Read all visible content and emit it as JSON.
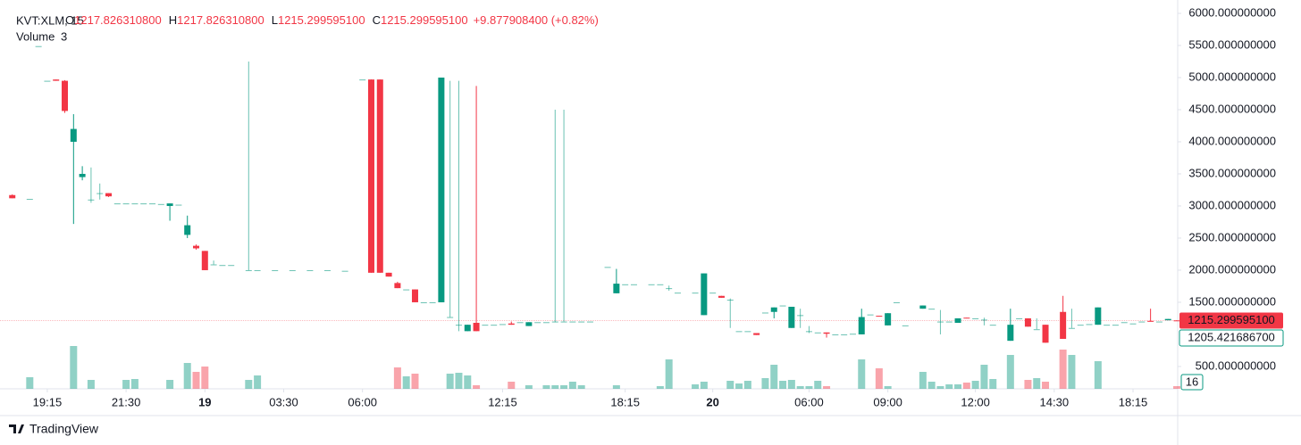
{
  "chart_data": {
    "type": "candlestick",
    "symbol": "KVT:XLM, 15",
    "ohlc_legend": {
      "o_label": "O",
      "o": "1217.826310800",
      "h_label": "H",
      "h": "1217.826310800",
      "l_label": "L",
      "l": "1215.299595100",
      "c_label": "C",
      "c": "1215.299595100",
      "change": "+9.877908400 (+0.82%)"
    },
    "volume_label": "Volume",
    "volume_value": "3",
    "up_color": "#089981",
    "down_color": "#f23645",
    "ylim": [
      152,
      6139
    ],
    "yticks": [
      {
        "value": 500,
        "label": "500.000000000"
      },
      {
        "value": 1500,
        "label": "1500.000000000"
      },
      {
        "value": 2000,
        "label": "2000.000000000"
      },
      {
        "value": 2500,
        "label": "2500.000000000"
      },
      {
        "value": 3000,
        "label": "3000.000000000"
      },
      {
        "value": 3500,
        "label": "3500.000000000"
      },
      {
        "value": 4000,
        "label": "4000.000000000"
      },
      {
        "value": 4500,
        "label": "4500.000000000"
      },
      {
        "value": 5000,
        "label": "5000.000000000"
      },
      {
        "value": 5500,
        "label": "5500.000000000"
      },
      {
        "value": 6000,
        "label": "6000.000000000"
      }
    ],
    "xlim": [
      -1.4,
      133.1
    ],
    "xticks": [
      {
        "value": 4,
        "label": "19:15"
      },
      {
        "value": 13,
        "label": "21:30"
      },
      {
        "value": 22,
        "label": "19"
      },
      {
        "value": 31,
        "label": "03:30"
      },
      {
        "value": 40,
        "label": "06:00"
      },
      {
        "value": 56,
        "label": "12:15"
      },
      {
        "value": 70,
        "label": "18:15"
      },
      {
        "value": 80,
        "label": "20"
      },
      {
        "value": 91,
        "label": "06:00"
      },
      {
        "value": 100,
        "label": "09:00"
      },
      {
        "value": 110,
        "label": "12:00"
      },
      {
        "value": 119,
        "label": "14:30"
      },
      {
        "value": 128,
        "label": "18:15"
      }
    ],
    "bold_xticks": [
      "19",
      "20"
    ],
    "volume_lim": [
      0,
      60
    ],
    "last_price": 1215.2995951,
    "last_price_label": "1215.299595100",
    "second_price_label": "1205.421686700",
    "volume_axis_label": "16",
    "brand": "TradingView",
    "candles": [
      {
        "x": 0,
        "o": 3170,
        "h": 3180,
        "l": 3120,
        "c": 3120,
        "v": 0
      },
      {
        "x": 2,
        "o": 3110,
        "h": 3110,
        "l": 3110,
        "c": 3110,
        "v": 13
      },
      {
        "x": 3,
        "o": 5490,
        "h": 5490,
        "l": 5490,
        "c": 5490,
        "v": 0
      },
      {
        "x": 4,
        "o": 4950,
        "h": 4950,
        "l": 4950,
        "c": 4950,
        "v": 0
      },
      {
        "x": 5,
        "o": 4970,
        "h": 4970,
        "l": 4950,
        "c": 4950,
        "v": 0
      },
      {
        "x": 6,
        "o": 4950,
        "h": 4960,
        "l": 4450,
        "c": 4480,
        "v": 0
      },
      {
        "x": 7,
        "o": 4000,
        "h": 4430,
        "l": 2720,
        "c": 4200,
        "v": 48
      },
      {
        "x": 8,
        "o": 3450,
        "h": 3620,
        "l": 3400,
        "c": 3500,
        "v": 0
      },
      {
        "x": 9,
        "o": 3100,
        "h": 3600,
        "l": 3050,
        "c": 3100,
        "v": 10
      },
      {
        "x": 10,
        "o": 3200,
        "h": 3350,
        "l": 3100,
        "c": 3200,
        "v": 0
      },
      {
        "x": 11,
        "o": 3200,
        "h": 3200,
        "l": 3140,
        "c": 3150,
        "v": 0
      },
      {
        "x": 12,
        "o": 3040,
        "h": 3040,
        "l": 3040,
        "c": 3040,
        "v": 0
      },
      {
        "x": 13,
        "o": 3040,
        "h": 3040,
        "l": 3040,
        "c": 3040,
        "v": 10
      },
      {
        "x": 14,
        "o": 3040,
        "h": 3040,
        "l": 3040,
        "c": 3040,
        "v": 11
      },
      {
        "x": 15,
        "o": 3040,
        "h": 3040,
        "l": 3040,
        "c": 3040,
        "v": 0
      },
      {
        "x": 16,
        "o": 3040,
        "h": 3040,
        "l": 3040,
        "c": 3040,
        "v": 0
      },
      {
        "x": 17,
        "o": 3030,
        "h": 3030,
        "l": 3030,
        "c": 3030,
        "v": 0
      },
      {
        "x": 18,
        "o": 3000,
        "h": 3040,
        "l": 2770,
        "c": 3040,
        "v": 10
      },
      {
        "x": 19,
        "o": 3020,
        "h": 3020,
        "l": 3020,
        "c": 3020,
        "v": 0
      },
      {
        "x": 20,
        "o": 2550,
        "h": 2850,
        "l": 2500,
        "c": 2700,
        "v": 29
      },
      {
        "x": 21,
        "o": 2380,
        "h": 2400,
        "l": 2320,
        "c": 2340,
        "v": 19
      },
      {
        "x": 22,
        "o": 2300,
        "h": 2300,
        "l": 2000,
        "c": 2000,
        "v": 25
      },
      {
        "x": 23,
        "o": 2090,
        "h": 2150,
        "l": 2090,
        "c": 2090,
        "v": 0
      },
      {
        "x": 24,
        "o": 2080,
        "h": 2080,
        "l": 2080,
        "c": 2080,
        "v": 0
      },
      {
        "x": 25,
        "o": 2080,
        "h": 2080,
        "l": 2080,
        "c": 2080,
        "v": 0
      },
      {
        "x": 27,
        "o": 2000,
        "h": 5250,
        "l": 2000,
        "c": 2000,
        "v": 10
      },
      {
        "x": 28,
        "o": 2000,
        "h": 2000,
        "l": 2000,
        "c": 2000,
        "v": 15
      },
      {
        "x": 30,
        "o": 2000,
        "h": 2000,
        "l": 2000,
        "c": 2000,
        "v": 0
      },
      {
        "x": 32,
        "o": 2000,
        "h": 2000,
        "l": 2000,
        "c": 2000,
        "v": 0
      },
      {
        "x": 34,
        "o": 2000,
        "h": 2000,
        "l": 2000,
        "c": 2000,
        "v": 0
      },
      {
        "x": 36,
        "o": 2000,
        "h": 2000,
        "l": 2000,
        "c": 2000,
        "v": 0
      },
      {
        "x": 38,
        "o": 1990,
        "h": 1990,
        "l": 1990,
        "c": 1990,
        "v": 0
      },
      {
        "x": 40,
        "o": 4970,
        "h": 4970,
        "l": 4970,
        "c": 4970,
        "v": 0
      },
      {
        "x": 41,
        "o": 4970,
        "h": 4970,
        "l": 1960,
        "c": 1960,
        "v": 0
      },
      {
        "x": 42,
        "o": 4970,
        "h": 4970,
        "l": 1960,
        "c": 1960,
        "v": 0
      },
      {
        "x": 43,
        "o": 1960,
        "h": 1960,
        "l": 1900,
        "c": 1900,
        "v": 0
      },
      {
        "x": 44,
        "o": 1800,
        "h": 1820,
        "l": 1720,
        "c": 1720,
        "v": 24
      },
      {
        "x": 45,
        "o": 1700,
        "h": 1700,
        "l": 1700,
        "c": 1700,
        "v": 14
      },
      {
        "x": 46,
        "o": 1700,
        "h": 1700,
        "l": 1500,
        "c": 1500,
        "v": 17
      },
      {
        "x": 47,
        "o": 1500,
        "h": 1500,
        "l": 1500,
        "c": 1500,
        "v": 0
      },
      {
        "x": 48,
        "o": 1500,
        "h": 1500,
        "l": 1500,
        "c": 1500,
        "v": 0
      },
      {
        "x": 49,
        "o": 1500,
        "h": 5000,
        "l": 1500,
        "c": 5000,
        "v": 0
      },
      {
        "x": 50,
        "o": 1270,
        "h": 4950,
        "l": 1270,
        "c": 1270,
        "v": 17
      },
      {
        "x": 51,
        "o": 1150,
        "h": 4950,
        "l": 1050,
        "c": 1150,
        "v": 18
      },
      {
        "x": 52,
        "o": 1050,
        "h": 1150,
        "l": 1050,
        "c": 1150,
        "v": 15
      },
      {
        "x": 53,
        "o": 1180,
        "h": 4870,
        "l": 1050,
        "c": 1050,
        "v": 4
      },
      {
        "x": 54,
        "o": 1150,
        "h": 1150,
        "l": 1150,
        "c": 1150,
        "v": 0
      },
      {
        "x": 55,
        "o": 1150,
        "h": 1150,
        "l": 1150,
        "c": 1150,
        "v": 0
      },
      {
        "x": 56,
        "o": 1160,
        "h": 1160,
        "l": 1160,
        "c": 1160,
        "v": 0
      },
      {
        "x": 57,
        "o": 1170,
        "h": 1200,
        "l": 1150,
        "c": 1150,
        "v": 8
      },
      {
        "x": 58,
        "o": 1190,
        "h": 1190,
        "l": 1190,
        "c": 1190,
        "v": 0
      },
      {
        "x": 59,
        "o": 1130,
        "h": 1190,
        "l": 1130,
        "c": 1190,
        "v": 4
      },
      {
        "x": 60,
        "o": 1190,
        "h": 1190,
        "l": 1190,
        "c": 1190,
        "v": 0
      },
      {
        "x": 61,
        "o": 1190,
        "h": 1190,
        "l": 1190,
        "c": 1190,
        "v": 4
      },
      {
        "x": 62,
        "o": 1200,
        "h": 4500,
        "l": 1190,
        "c": 1200,
        "v": 4
      },
      {
        "x": 63,
        "o": 1200,
        "h": 4500,
        "l": 1200,
        "c": 1200,
        "v": 4
      },
      {
        "x": 64,
        "o": 1200,
        "h": 1200,
        "l": 1200,
        "c": 1200,
        "v": 8
      },
      {
        "x": 65,
        "o": 1200,
        "h": 1200,
        "l": 1200,
        "c": 1200,
        "v": 4
      },
      {
        "x": 66,
        "o": 1200,
        "h": 1200,
        "l": 1200,
        "c": 1200,
        "v": 0
      },
      {
        "x": 68,
        "o": 2050,
        "h": 2050,
        "l": 2050,
        "c": 2050,
        "v": 0
      },
      {
        "x": 69,
        "o": 1640,
        "h": 2020,
        "l": 1640,
        "c": 1790,
        "v": 4
      },
      {
        "x": 70,
        "o": 1780,
        "h": 1780,
        "l": 1780,
        "c": 1780,
        "v": 0
      },
      {
        "x": 71,
        "o": 1780,
        "h": 1780,
        "l": 1780,
        "c": 1780,
        "v": 0
      },
      {
        "x": 73,
        "o": 1780,
        "h": 1780,
        "l": 1780,
        "c": 1780,
        "v": 0
      },
      {
        "x": 74,
        "o": 1780,
        "h": 1780,
        "l": 1780,
        "c": 1780,
        "v": 3
      },
      {
        "x": 75,
        "o": 1720,
        "h": 1760,
        "l": 1680,
        "c": 1720,
        "v": 33
      },
      {
        "x": 76,
        "o": 1650,
        "h": 1650,
        "l": 1650,
        "c": 1650,
        "v": 0
      },
      {
        "x": 78,
        "o": 1650,
        "h": 1650,
        "l": 1650,
        "c": 1650,
        "v": 5
      },
      {
        "x": 79,
        "o": 1300,
        "h": 1950,
        "l": 1300,
        "c": 1950,
        "v": 8
      },
      {
        "x": 80,
        "o": 1650,
        "h": 1650,
        "l": 1650,
        "c": 1650,
        "v": 0
      },
      {
        "x": 81,
        "o": 1600,
        "h": 1600,
        "l": 1570,
        "c": 1570,
        "v": 0
      },
      {
        "x": 82,
        "o": 1540,
        "h": 1560,
        "l": 1100,
        "c": 1540,
        "v": 9
      },
      {
        "x": 83,
        "o": 1050,
        "h": 1050,
        "l": 1050,
        "c": 1050,
        "v": 6
      },
      {
        "x": 84,
        "o": 1050,
        "h": 1050,
        "l": 1050,
        "c": 1050,
        "v": 9
      },
      {
        "x": 85,
        "o": 1020,
        "h": 1020,
        "l": 990,
        "c": 990,
        "v": 0
      },
      {
        "x": 86,
        "o": 1340,
        "h": 1340,
        "l": 1340,
        "c": 1340,
        "v": 12
      },
      {
        "x": 87,
        "o": 1350,
        "h": 1420,
        "l": 1250,
        "c": 1420,
        "v": 27
      },
      {
        "x": 88,
        "o": 1450,
        "h": 1450,
        "l": 1450,
        "c": 1450,
        "v": 9
      },
      {
        "x": 89,
        "o": 1100,
        "h": 1430,
        "l": 1100,
        "c": 1430,
        "v": 10
      },
      {
        "x": 90,
        "o": 1300,
        "h": 1400,
        "l": 1100,
        "c": 1300,
        "v": 3
      },
      {
        "x": 91,
        "o": 1050,
        "h": 1130,
        "l": 1020,
        "c": 1050,
        "v": 3
      },
      {
        "x": 92,
        "o": 1030,
        "h": 1030,
        "l": 1030,
        "c": 1030,
        "v": 9
      },
      {
        "x": 93,
        "o": 1030,
        "h": 1030,
        "l": 950,
        "c": 1010,
        "v": 3
      },
      {
        "x": 94,
        "o": 1000,
        "h": 1000,
        "l": 1000,
        "c": 1000,
        "v": 0
      },
      {
        "x": 95,
        "o": 1000,
        "h": 1000,
        "l": 1000,
        "c": 1000,
        "v": 0
      },
      {
        "x": 96,
        "o": 1010,
        "h": 1010,
        "l": 1010,
        "c": 1010,
        "v": 0
      },
      {
        "x": 97,
        "o": 1000,
        "h": 1400,
        "l": 1000,
        "c": 1270,
        "v": 33
      },
      {
        "x": 98,
        "o": 1310,
        "h": 1310,
        "l": 1310,
        "c": 1310,
        "v": 0
      },
      {
        "x": 99,
        "o": 1290,
        "h": 1290,
        "l": 1280,
        "c": 1280,
        "v": 23
      },
      {
        "x": 100,
        "o": 1140,
        "h": 1330,
        "l": 1140,
        "c": 1330,
        "v": 3
      },
      {
        "x": 101,
        "o": 1500,
        "h": 1500,
        "l": 1500,
        "c": 1500,
        "v": 0
      },
      {
        "x": 102,
        "o": 1140,
        "h": 1140,
        "l": 1140,
        "c": 1140,
        "v": 0
      },
      {
        "x": 104,
        "o": 1400,
        "h": 1450,
        "l": 1400,
        "c": 1450,
        "v": 19
      },
      {
        "x": 105,
        "o": 1400,
        "h": 1400,
        "l": 1400,
        "c": 1400,
        "v": 8
      },
      {
        "x": 106,
        "o": 1200,
        "h": 1380,
        "l": 1000,
        "c": 1200,
        "v": 3
      },
      {
        "x": 107,
        "o": 1200,
        "h": 1200,
        "l": 1200,
        "c": 1200,
        "v": 5
      },
      {
        "x": 108,
        "o": 1180,
        "h": 1250,
        "l": 1180,
        "c": 1250,
        "v": 5
      },
      {
        "x": 109,
        "o": 1260,
        "h": 1260,
        "l": 1250,
        "c": 1250,
        "v": 7
      },
      {
        "x": 110,
        "o": 1250,
        "h": 1250,
        "l": 1250,
        "c": 1250,
        "v": 9
      },
      {
        "x": 111,
        "o": 1230,
        "h": 1260,
        "l": 1140,
        "c": 1230,
        "v": 27
      },
      {
        "x": 112,
        "o": 1150,
        "h": 1150,
        "l": 1150,
        "c": 1150,
        "v": 11
      },
      {
        "x": 114,
        "o": 900,
        "h": 1400,
        "l": 900,
        "c": 1150,
        "v": 38
      },
      {
        "x": 115,
        "o": 1250,
        "h": 1250,
        "l": 1250,
        "c": 1250,
        "v": 0
      },
      {
        "x": 116,
        "o": 1250,
        "h": 1250,
        "l": 1120,
        "c": 1120,
        "v": 10
      },
      {
        "x": 117,
        "o": 1080,
        "h": 1250,
        "l": 1080,
        "c": 1080,
        "v": 12
      },
      {
        "x": 118,
        "o": 1150,
        "h": 1150,
        "l": 870,
        "c": 870,
        "v": 8
      },
      {
        "x": 120,
        "o": 1350,
        "h": 1600,
        "l": 930,
        "c": 930,
        "v": 44
      },
      {
        "x": 121,
        "o": 1100,
        "h": 1400,
        "l": 1100,
        "c": 1100,
        "v": 38
      },
      {
        "x": 122,
        "o": 1150,
        "h": 1150,
        "l": 1150,
        "c": 1150,
        "v": 0
      },
      {
        "x": 123,
        "o": 1160,
        "h": 1160,
        "l": 1160,
        "c": 1160,
        "v": 0
      },
      {
        "x": 124,
        "o": 1150,
        "h": 1420,
        "l": 1150,
        "c": 1420,
        "v": 31
      },
      {
        "x": 125,
        "o": 1150,
        "h": 1150,
        "l": 1150,
        "c": 1150,
        "v": 0
      },
      {
        "x": 126,
        "o": 1150,
        "h": 1150,
        "l": 1150,
        "c": 1150,
        "v": 0
      },
      {
        "x": 127,
        "o": 1190,
        "h": 1190,
        "l": 1190,
        "c": 1190,
        "v": 0
      },
      {
        "x": 128,
        "o": 1170,
        "h": 1170,
        "l": 1170,
        "c": 1170,
        "v": 0
      },
      {
        "x": 129,
        "o": 1200,
        "h": 1200,
        "l": 1200,
        "c": 1200,
        "v": 0
      },
      {
        "x": 130,
        "o": 1210,
        "h": 1400,
        "l": 1200,
        "c": 1200,
        "v": 0
      },
      {
        "x": 131,
        "o": 1200,
        "h": 1200,
        "l": 1200,
        "c": 1200,
        "v": 0
      },
      {
        "x": 132,
        "o": 1220,
        "h": 1240,
        "l": 1220,
        "c": 1240,
        "v": 0
      },
      {
        "x": 133,
        "o": 1217.8263108,
        "h": 1217.8263108,
        "l": 1215.2995951,
        "c": 1215.2995951,
        "v": 3
      }
    ]
  }
}
